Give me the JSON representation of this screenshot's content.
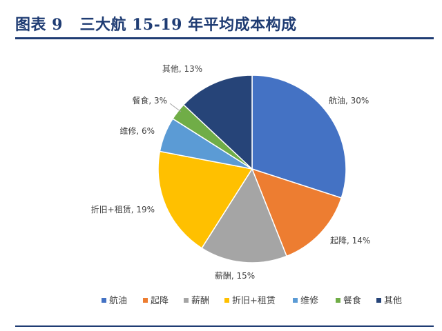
{
  "header": {
    "title": "图表 9   三大航 15-19 年平均成本构成"
  },
  "chart_data": {
    "type": "pie",
    "title": "",
    "categories": [
      "航油",
      "起降",
      "薪酬",
      "折旧+租赁",
      "维修",
      "餐食",
      "其他"
    ],
    "values": [
      30,
      14,
      15,
      19,
      6,
      3,
      13
    ],
    "value_suffix": "%",
    "colors": [
      "#4472c4",
      "#ed7d31",
      "#a5a5a5",
      "#ffc000",
      "#5b9bd5",
      "#70ad47",
      "#264478"
    ],
    "data_labels": [
      "航油, 30%",
      "起降, 14%",
      "薪酬, 15%",
      "折旧+租赁, 19%",
      "维修, 6%",
      "餐食, 3%",
      "其他, 13%"
    ],
    "legend_position": "bottom",
    "start_angle": "12 o'clock",
    "direction": "clockwise"
  }
}
